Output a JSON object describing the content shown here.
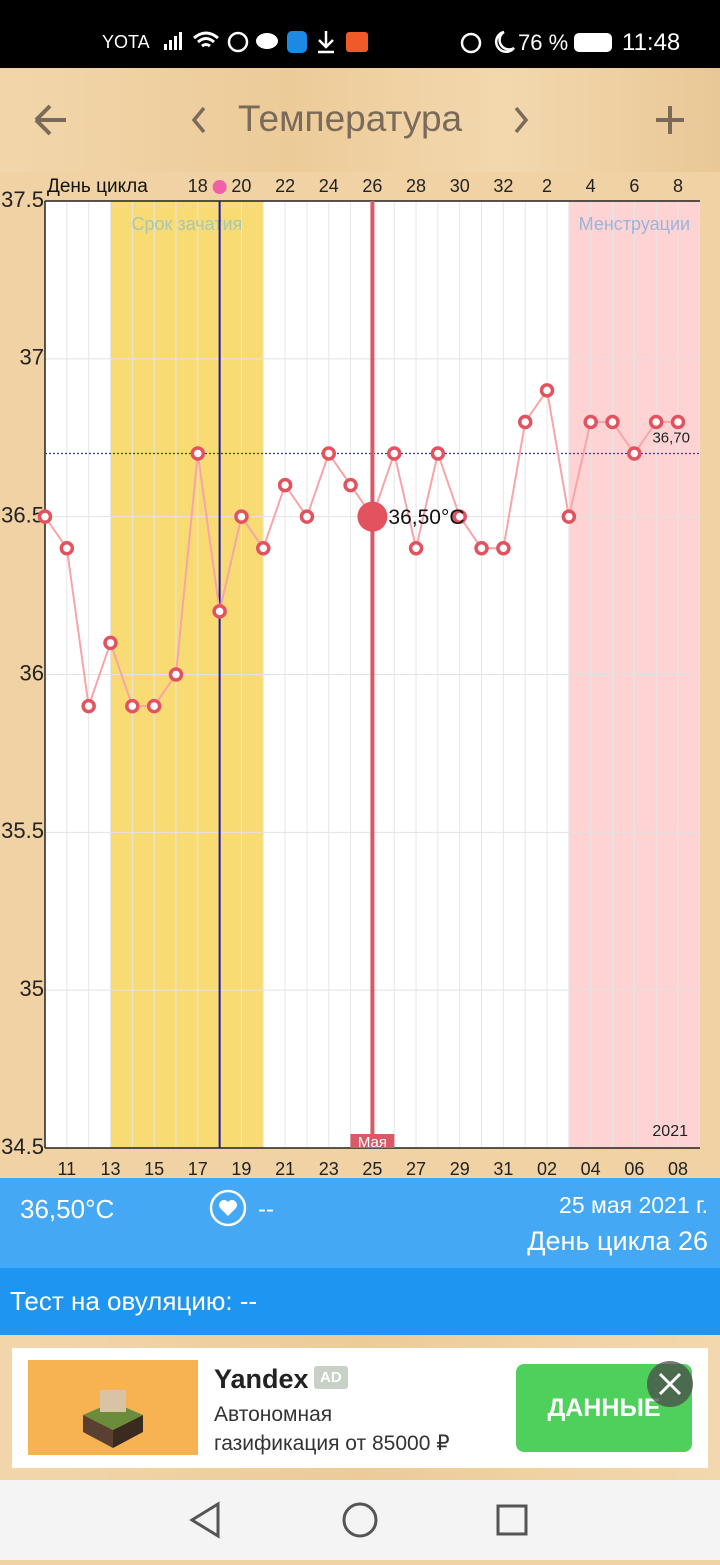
{
  "status_bar": {
    "carrier": "YOTA",
    "battery": "76 %",
    "time": "11:48"
  },
  "header": {
    "title": "Температура"
  },
  "chart_data": {
    "type": "line",
    "top_axis_label": "День цикла",
    "categories": [
      null,
      "11",
      null,
      "13",
      null,
      "15",
      null,
      "17",
      null,
      "19",
      null,
      "21",
      null,
      "23",
      null,
      "25",
      null,
      "27",
      null,
      "29",
      null,
      "31",
      null,
      "02",
      null,
      "04",
      null,
      "06",
      null,
      "08"
    ],
    "cycle_days": [
      null,
      null,
      null,
      null,
      null,
      null,
      null,
      "18",
      null,
      "20",
      null,
      "22",
      null,
      "24",
      null,
      "26",
      null,
      "28",
      null,
      "30",
      null,
      "32",
      null,
      "2",
      null,
      "4",
      null,
      "6",
      null,
      "8"
    ],
    "values": [
      36.5,
      36.4,
      35.9,
      36.1,
      35.9,
      35.9,
      36.0,
      36.7,
      36.2,
      36.5,
      36.4,
      36.6,
      36.5,
      36.7,
      36.6,
      36.5,
      36.7,
      36.4,
      36.7,
      36.5,
      36.4,
      36.4,
      36.8,
      36.9,
      36.5,
      36.8,
      36.8,
      36.7,
      36.8,
      36.8
    ],
    "color": "#f6a5a8",
    "marker_color": "#e2525f",
    "ylim": [
      34.5,
      37.5
    ],
    "yticks": [
      34.5,
      35,
      35.5,
      36,
      36.5,
      37,
      37.5
    ],
    "grid": true,
    "bands": [
      {
        "label": "Срок зачатия",
        "start": 3,
        "end": 10,
        "color": "#f9db74",
        "label_color": "#a8c8b0"
      },
      {
        "label": "Менструации",
        "start": 24,
        "end": 30,
        "color": "#ffd3d3",
        "label_color": "#9ab4dc"
      }
    ],
    "ovulation_index": 8,
    "selected": {
      "index": 15,
      "label": "36,50°C"
    },
    "reference_line": {
      "value": 36.7,
      "label": "36,70"
    },
    "month_label": "Мая",
    "year_label": "2021"
  },
  "info": {
    "temperature": "36,50°C",
    "heart": "--",
    "date": "25 мая 2021 г.",
    "cycle_day": "День цикла 26"
  },
  "ovulation_test": "Тест на овуляцию: --",
  "ad": {
    "brand": "Yandex",
    "badge": "AD",
    "line1": "Автономная",
    "line2": "газификация от 85000 ₽",
    "button": "ДАННЫЕ"
  }
}
